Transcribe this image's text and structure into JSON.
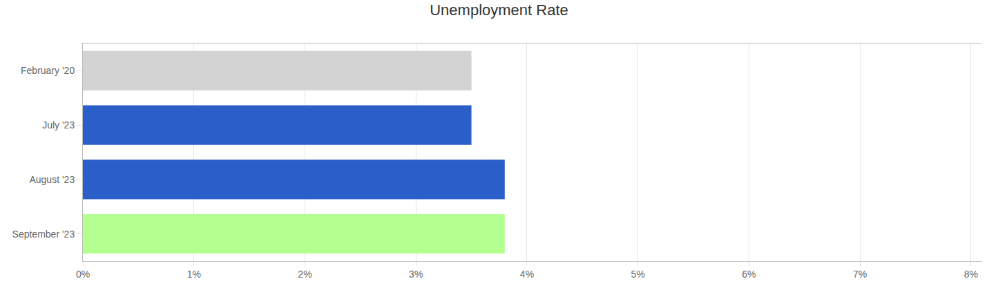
{
  "chart_data": {
    "type": "bar",
    "orientation": "horizontal",
    "title": "Unemployment Rate",
    "categories": [
      "February '20",
      "July '23",
      "August '23",
      "September '23"
    ],
    "values": [
      3.5,
      3.5,
      3.8,
      3.8
    ],
    "colors": [
      "#d3d3d3",
      "#2a5fc9",
      "#2a5fc9",
      "#b3ff8f"
    ],
    "xlim": [
      0,
      8.1
    ],
    "xticks": [
      {
        "value": 0,
        "label": "0%"
      },
      {
        "value": 1,
        "label": "1%"
      },
      {
        "value": 2,
        "label": "2%"
      },
      {
        "value": 3,
        "label": "3%"
      },
      {
        "value": 4,
        "label": "4%"
      },
      {
        "value": 5,
        "label": "5%"
      },
      {
        "value": 6,
        "label": "6%"
      },
      {
        "value": 7,
        "label": "7%"
      },
      {
        "value": 8,
        "label": "8%"
      }
    ],
    "grid": true
  }
}
